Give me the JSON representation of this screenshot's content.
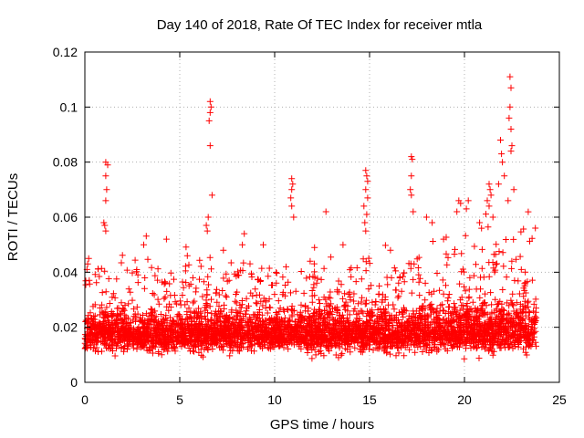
{
  "chart_data": {
    "type": "scatter",
    "title": "Day 140 of 2018, Rate Of TEC Index for receiver mtla",
    "xlabel": "GPS time / hours",
    "ylabel": "ROTI / TECUs",
    "xlim": [
      0,
      25
    ],
    "ylim": [
      0,
      0.12
    ],
    "x_ticks": [
      0,
      5,
      10,
      15,
      20,
      25
    ],
    "y_ticks": [
      0,
      0.02,
      0.04,
      0.06,
      0.08,
      0.1,
      0.12
    ],
    "x_tick_labels": [
      "0",
      "5",
      "10",
      "15",
      "20",
      "25"
    ],
    "y_tick_labels": [
      "0",
      "0.02",
      "0.04",
      "0.06",
      "0.08",
      "0.1",
      "0.12"
    ],
    "grid": true,
    "marker": "plus",
    "marker_color": "#ff0000",
    "data_range_hours": [
      0,
      23.8
    ],
    "band": {
      "baseline": 0.014,
      "spread": 0.006,
      "upper_envelope": 0.04
    },
    "series": [
      {
        "name": "ROTI",
        "notable_points": [
          {
            "x": 1.1,
            "y": 0.08
          },
          {
            "x": 1.2,
            "y": 0.079
          },
          {
            "x": 1.1,
            "y": 0.075
          },
          {
            "x": 1.15,
            "y": 0.07
          },
          {
            "x": 1.1,
            "y": 0.066
          },
          {
            "x": 1.0,
            "y": 0.058
          },
          {
            "x": 1.05,
            "y": 0.057
          },
          {
            "x": 1.1,
            "y": 0.055
          },
          {
            "x": 6.6,
            "y": 0.102
          },
          {
            "x": 6.65,
            "y": 0.1
          },
          {
            "x": 6.6,
            "y": 0.098
          },
          {
            "x": 6.55,
            "y": 0.095
          },
          {
            "x": 6.6,
            "y": 0.086
          },
          {
            "x": 6.7,
            "y": 0.068
          },
          {
            "x": 6.5,
            "y": 0.06
          },
          {
            "x": 6.4,
            "y": 0.057
          },
          {
            "x": 6.45,
            "y": 0.055
          },
          {
            "x": 8.4,
            "y": 0.054
          },
          {
            "x": 8.3,
            "y": 0.05
          },
          {
            "x": 10.9,
            "y": 0.074
          },
          {
            "x": 10.95,
            "y": 0.072
          },
          {
            "x": 10.9,
            "y": 0.07
          },
          {
            "x": 10.85,
            "y": 0.067
          },
          {
            "x": 10.9,
            "y": 0.064
          },
          {
            "x": 11.0,
            "y": 0.06
          },
          {
            "x": 12.7,
            "y": 0.062
          },
          {
            "x": 14.8,
            "y": 0.077
          },
          {
            "x": 14.85,
            "y": 0.075
          },
          {
            "x": 14.9,
            "y": 0.073
          },
          {
            "x": 14.8,
            "y": 0.07
          },
          {
            "x": 14.9,
            "y": 0.067
          },
          {
            "x": 14.7,
            "y": 0.064
          },
          {
            "x": 14.85,
            "y": 0.061
          },
          {
            "x": 14.75,
            "y": 0.058
          },
          {
            "x": 14.8,
            "y": 0.055
          },
          {
            "x": 17.2,
            "y": 0.082
          },
          {
            "x": 17.25,
            "y": 0.081
          },
          {
            "x": 17.2,
            "y": 0.075
          },
          {
            "x": 17.15,
            "y": 0.07
          },
          {
            "x": 17.2,
            "y": 0.068
          },
          {
            "x": 17.3,
            "y": 0.062
          },
          {
            "x": 18.0,
            "y": 0.06
          },
          {
            "x": 18.3,
            "y": 0.058
          },
          {
            "x": 19.7,
            "y": 0.066
          },
          {
            "x": 19.8,
            "y": 0.065
          },
          {
            "x": 19.6,
            "y": 0.062
          },
          {
            "x": 20.2,
            "y": 0.066
          },
          {
            "x": 20.1,
            "y": 0.063
          },
          {
            "x": 20.8,
            "y": 0.058
          },
          {
            "x": 20.9,
            "y": 0.056
          },
          {
            "x": 21.3,
            "y": 0.072
          },
          {
            "x": 21.35,
            "y": 0.07
          },
          {
            "x": 21.4,
            "y": 0.068
          },
          {
            "x": 21.2,
            "y": 0.066
          },
          {
            "x": 21.3,
            "y": 0.064
          },
          {
            "x": 21.5,
            "y": 0.06
          },
          {
            "x": 21.9,
            "y": 0.088
          },
          {
            "x": 21.95,
            "y": 0.083
          },
          {
            "x": 22.0,
            "y": 0.08
          },
          {
            "x": 22.1,
            "y": 0.075
          },
          {
            "x": 21.8,
            "y": 0.072
          },
          {
            "x": 22.4,
            "y": 0.111
          },
          {
            "x": 22.45,
            "y": 0.107
          },
          {
            "x": 22.4,
            "y": 0.1
          },
          {
            "x": 22.35,
            "y": 0.096
          },
          {
            "x": 22.45,
            "y": 0.092
          },
          {
            "x": 22.5,
            "y": 0.086
          },
          {
            "x": 22.45,
            "y": 0.084
          },
          {
            "x": 22.6,
            "y": 0.07
          },
          {
            "x": 22.3,
            "y": 0.066
          },
          {
            "x": 0.2,
            "y": 0.045
          },
          {
            "x": 0.15,
            "y": 0.043
          },
          {
            "x": 3.1,
            "y": 0.05
          },
          {
            "x": 4.3,
            "y": 0.052
          },
          {
            "x": 5.4,
            "y": 0.046
          },
          {
            "x": 7.3,
            "y": 0.048
          },
          {
            "x": 9.4,
            "y": 0.05
          },
          {
            "x": 12.1,
            "y": 0.049
          },
          {
            "x": 13.6,
            "y": 0.05
          },
          {
            "x": 16.1,
            "y": 0.048
          },
          {
            "x": 18.9,
            "y": 0.052
          },
          {
            "x": 23.2,
            "y": 0.04
          }
        ]
      }
    ]
  }
}
